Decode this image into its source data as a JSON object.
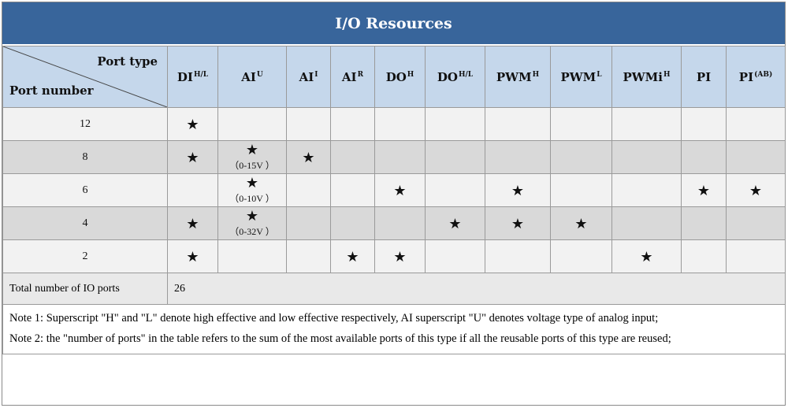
{
  "title": "I/O Resources",
  "header": {
    "port_type_label": "Port type",
    "port_number_label": "Port number",
    "columns": [
      {
        "base": "DI",
        "sup": "H/L"
      },
      {
        "base": "AI",
        "sup": "U"
      },
      {
        "base": "AI",
        "sup": "I"
      },
      {
        "base": "AI",
        "sup": "R"
      },
      {
        "base": "DO",
        "sup": "H"
      },
      {
        "base": "DO",
        "sup": "H/L"
      },
      {
        "base": "PWM",
        "sup": "H"
      },
      {
        "base": "PWM",
        "sup": "L"
      },
      {
        "base": "PWMi",
        "sup": "H"
      },
      {
        "base": "PI",
        "sup": ""
      },
      {
        "base": "PI",
        "sup": "(AB)"
      }
    ]
  },
  "rows": [
    {
      "port_number": "12",
      "cells": [
        "★",
        "",
        "",
        "",
        "",
        "",
        "",
        "",
        "",
        "",
        ""
      ]
    },
    {
      "port_number": "8",
      "cells": [
        "★",
        "★",
        "★",
        "",
        "",
        "",
        "",
        "",
        "",
        "",
        ""
      ],
      "notes": {
        "1": "（0-15V ）"
      }
    },
    {
      "port_number": "6",
      "cells": [
        "",
        "★",
        "",
        "",
        "★",
        "",
        "★",
        "",
        "",
        "★",
        "★"
      ],
      "notes": {
        "1": "（0-10V ）"
      }
    },
    {
      "port_number": "4",
      "cells": [
        "★",
        "★",
        "",
        "",
        "",
        "★",
        "★",
        "★",
        "",
        "",
        ""
      ],
      "notes": {
        "1": "（0-32V ）"
      }
    },
    {
      "port_number": "2",
      "cells": [
        "★",
        "",
        "",
        "★",
        "★",
        "",
        "",
        "",
        "★",
        "",
        ""
      ]
    }
  ],
  "total": {
    "label": "Total number of IO ports",
    "value": "26"
  },
  "notes": [
    "Note 1: Superscript \"H\" and \"L\" denote high effective and low effective respectively, AI superscript \"U\" denotes voltage type of analog input;",
    "Note 2: the \"number of ports\" in the table refers to the sum of the most available ports of this type if all the reusable ports of this type are reused;"
  ]
}
